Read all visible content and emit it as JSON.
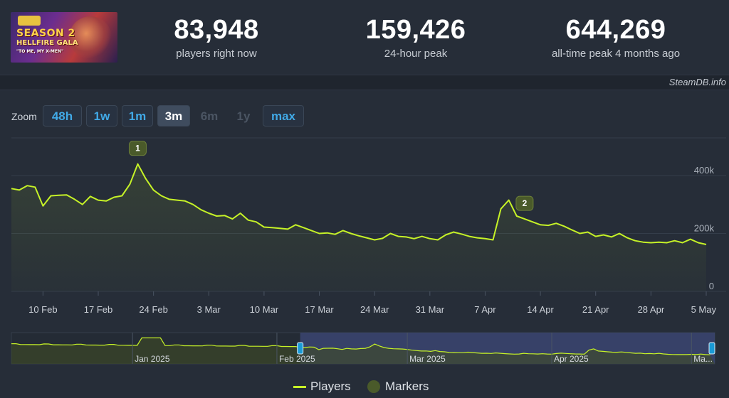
{
  "header": {
    "banner": {
      "title": "SEASON 2",
      "subtitle": "HELLFIRE GALA",
      "tagline": "\"TO ME, MY X-MEN\""
    },
    "stats": [
      {
        "value": "83,948",
        "label": "players right now"
      },
      {
        "value": "159,426",
        "label": "24-hour peak"
      },
      {
        "value": "644,269",
        "label": "all-time peak 4 months ago"
      }
    ],
    "credit": "SteamDB.info"
  },
  "zoom": {
    "label": "Zoom",
    "buttons": [
      {
        "label": "48h",
        "state": "enabled"
      },
      {
        "label": "1w",
        "state": "enabled"
      },
      {
        "label": "1m",
        "state": "enabled"
      },
      {
        "label": "3m",
        "state": "active"
      },
      {
        "label": "6m",
        "state": "disabled"
      },
      {
        "label": "1y",
        "state": "disabled"
      },
      {
        "label": "max",
        "state": "enabled"
      }
    ]
  },
  "legend": {
    "players": "Players",
    "markers": "Markers"
  },
  "colors": {
    "line": "#c6f227",
    "marker_fill": "#4a5a2a",
    "navigator_selection": "#3e4a7a"
  },
  "chart_data": {
    "type": "line",
    "series": [
      {
        "name": "Players",
        "x": [
          "2025-02-06",
          "2025-02-07",
          "2025-02-08",
          "2025-02-09",
          "2025-02-10",
          "2025-02-11",
          "2025-02-12",
          "2025-02-13",
          "2025-02-14",
          "2025-02-15",
          "2025-02-16",
          "2025-02-17",
          "2025-02-18",
          "2025-02-19",
          "2025-02-20",
          "2025-02-21",
          "2025-02-22",
          "2025-02-23",
          "2025-02-24",
          "2025-02-25",
          "2025-02-26",
          "2025-02-27",
          "2025-02-28",
          "2025-03-01",
          "2025-03-02",
          "2025-03-03",
          "2025-03-04",
          "2025-03-05",
          "2025-03-06",
          "2025-03-07",
          "2025-03-08",
          "2025-03-09",
          "2025-03-10",
          "2025-03-11",
          "2025-03-12",
          "2025-03-13",
          "2025-03-14",
          "2025-03-15",
          "2025-03-16",
          "2025-03-17",
          "2025-03-18",
          "2025-03-19",
          "2025-03-20",
          "2025-03-21",
          "2025-03-22",
          "2025-03-23",
          "2025-03-24",
          "2025-03-25",
          "2025-03-26",
          "2025-03-27",
          "2025-03-28",
          "2025-03-29",
          "2025-03-30",
          "2025-03-31",
          "2025-04-01",
          "2025-04-02",
          "2025-04-03",
          "2025-04-04",
          "2025-04-05",
          "2025-04-06",
          "2025-04-07",
          "2025-04-08",
          "2025-04-09",
          "2025-04-10",
          "2025-04-11",
          "2025-04-12",
          "2025-04-13",
          "2025-04-14",
          "2025-04-15",
          "2025-04-16",
          "2025-04-17",
          "2025-04-18",
          "2025-04-19",
          "2025-04-20",
          "2025-04-21",
          "2025-04-22",
          "2025-04-23",
          "2025-04-24",
          "2025-04-25",
          "2025-04-26",
          "2025-04-27",
          "2025-04-28",
          "2025-04-29",
          "2025-04-30",
          "2025-05-01",
          "2025-05-02",
          "2025-05-03",
          "2025-05-04",
          "2025-05-05"
        ],
        "values": [
          355000,
          350000,
          365000,
          360000,
          295000,
          330000,
          332000,
          333000,
          318000,
          300000,
          328000,
          315000,
          312000,
          325000,
          330000,
          370000,
          440000,
          390000,
          350000,
          330000,
          318000,
          315000,
          312000,
          300000,
          282000,
          270000,
          260000,
          262000,
          250000,
          270000,
          246000,
          240000,
          222000,
          220000,
          218000,
          215000,
          230000,
          220000,
          210000,
          200000,
          202000,
          197000,
          210000,
          200000,
          192000,
          185000,
          178000,
          183000,
          200000,
          190000,
          188000,
          182000,
          190000,
          182000,
          178000,
          195000,
          205000,
          198000,
          190000,
          185000,
          182000,
          178000,
          285000,
          315000,
          260000,
          250000,
          240000,
          230000,
          228000,
          235000,
          225000,
          212000,
          200000,
          205000,
          190000,
          195000,
          188000,
          200000,
          185000,
          175000,
          170000,
          168000,
          170000,
          168000,
          175000,
          168000,
          180000,
          168000,
          162000
        ]
      }
    ],
    "markers": [
      {
        "label": "1",
        "date": "2025-02-22"
      },
      {
        "label": "2",
        "date": "2025-04-12"
      }
    ],
    "x_ticks": [
      "10 Feb",
      "17 Feb",
      "24 Feb",
      "3 Mar",
      "10 Mar",
      "17 Mar",
      "24 Mar",
      "31 Mar",
      "7 Apr",
      "14 Apr",
      "21 Apr",
      "28 Apr",
      "5 May"
    ],
    "y_ticks": [
      {
        "value": 0,
        "label": "0"
      },
      {
        "value": 200000,
        "label": "200k"
      },
      {
        "value": 400000,
        "label": "400k"
      }
    ],
    "ylim": [
      0,
      530000
    ],
    "navigator": {
      "labels": [
        "Jan 2025",
        "Feb 2025",
        "Mar 2025",
        "Apr 2025",
        "Ma..."
      ],
      "selection": [
        "2025-02-06",
        "2025-05-05"
      ]
    }
  }
}
